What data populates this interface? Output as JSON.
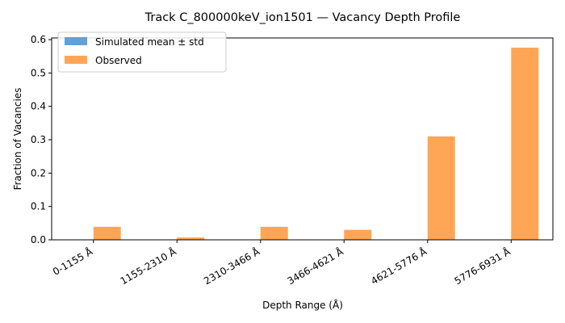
{
  "chart_data": {
    "type": "bar",
    "title": "Track C_800000keV_ion1501 — Vacancy Depth Profile",
    "xlabel": "Depth Range (Å)",
    "ylabel": "Fraction of Vacancies",
    "categories": [
      "0-1155 Å",
      "1155-2310 Å",
      "2310-3466 Å",
      "3466-4621 Å",
      "4621-5776 Å",
      "5776-6931 Å"
    ],
    "ylim": [
      0,
      0.605
    ],
    "yticks": [
      "0.0",
      "0.1",
      "0.2",
      "0.3",
      "0.4",
      "0.5",
      "0.6"
    ],
    "grid": false,
    "legend_position": "top-left",
    "series": [
      {
        "name": "Simulated mean ± std",
        "values": [
          0,
          0,
          0,
          0,
          0,
          0
        ],
        "color": "#5b9bd5"
      },
      {
        "name": "Observed",
        "values": [
          0.039,
          0.007,
          0.039,
          0.03,
          0.31,
          0.576
        ],
        "color": "#ffa555"
      }
    ]
  }
}
